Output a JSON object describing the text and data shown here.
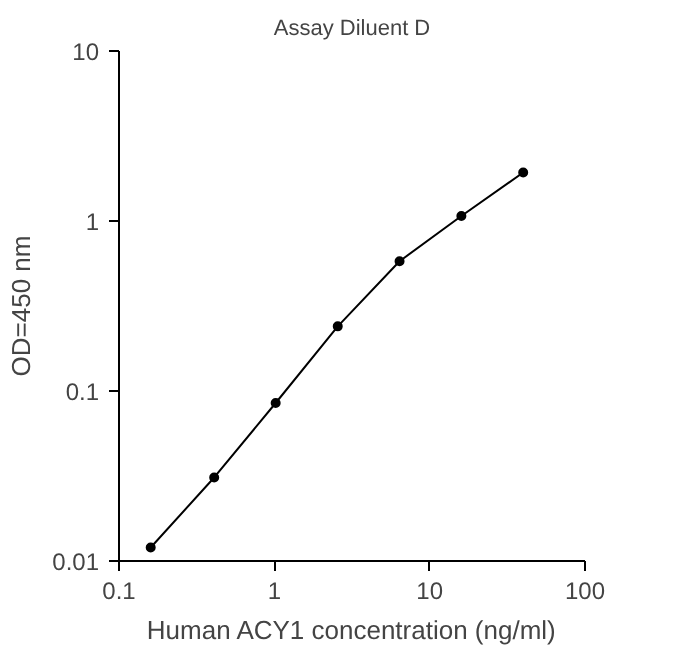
{
  "chart_data": {
    "type": "line",
    "title": "Assay Diluent D",
    "xlabel": "Human ACY1 concentration (ng/ml)",
    "ylabel": "OD=450 nm",
    "x": [
      0.16,
      0.41,
      1.02,
      2.56,
      6.4,
      16,
      40
    ],
    "series": [
      {
        "color": "#000000",
        "values": [
          0.012,
          0.031,
          0.085,
          0.24,
          0.58,
          1.07,
          1.93
        ]
      }
    ],
    "log": "xy",
    "xlim": [
      0.1,
      100
    ],
    "ylim": [
      0.01,
      10
    ],
    "xticks": [
      0.1,
      1,
      10,
      100
    ],
    "yticks": [
      0.01,
      0.1,
      1,
      10
    ],
    "grid": false,
    "marker": "circle",
    "line_style": "solid"
  }
}
